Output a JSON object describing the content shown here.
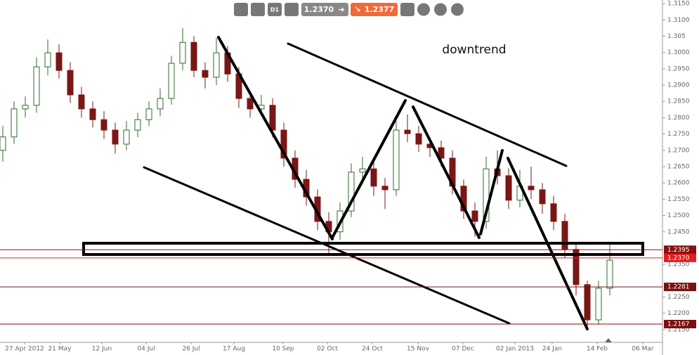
{
  "toolbar": {
    "timeframe": "D1",
    "bid": "1.2370",
    "ask": "1.2377"
  },
  "chart_data": {
    "type": "candlestick",
    "annotation": "downtrend",
    "up_color": "#2e6b2e",
    "down_color": "#7a1616",
    "xlim": [
      0,
      235.75
    ],
    "xticks": [
      {
        "value": 8.75,
        "label": "27 Apr 2012"
      },
      {
        "value": 21.25,
        "label": "21 May"
      },
      {
        "value": 36.25,
        "label": "12 Jun"
      },
      {
        "value": 52,
        "label": "04 Jul"
      },
      {
        "value": 68,
        "label": "26 Jul"
      },
      {
        "value": 83.25,
        "label": "17 Aug"
      },
      {
        "value": 100.75,
        "label": "10 Sep"
      },
      {
        "value": 116.5,
        "label": "02 Oct"
      },
      {
        "value": 132.5,
        "label": "24 Oct"
      },
      {
        "value": 148.75,
        "label": "15 Nov"
      },
      {
        "value": 164.75,
        "label": "07 Dec"
      },
      {
        "value": 183.25,
        "label": "02 Jan 2013"
      },
      {
        "value": 196.5,
        "label": "24 Jan"
      },
      {
        "value": 212.5,
        "label": "14 Feb"
      },
      {
        "value": 228.75,
        "label": "06 Mar"
      }
    ],
    "ylim": [
      1.2111,
      1.3161
    ],
    "yticks": [
      {
        "value": 1.315,
        "label": "1.3150"
      },
      {
        "value": 1.31,
        "label": "1.3100"
      },
      1.305,
      {
        "value": 1.3,
        "label": "1.3000"
      },
      {
        "value": 1.295,
        "label": "1.2950"
      },
      {
        "value": 1.29,
        "label": "1.2900"
      },
      {
        "value": 1.285,
        "label": "1.2850"
      },
      {
        "value": 1.28,
        "label": "1.2800"
      },
      {
        "value": 1.275,
        "label": "1.2750"
      },
      {
        "value": 1.27,
        "label": "1.2700"
      },
      {
        "value": 1.265,
        "label": "1.2650"
      },
      {
        "value": 1.26,
        "label": "1.2600"
      },
      {
        "value": 1.255,
        "label": "1.2550"
      },
      {
        "value": 1.25,
        "label": "1.2500"
      },
      {
        "value": 1.245,
        "label": "1.2450"
      },
      {
        "value": 1.235,
        "label": "1.2350"
      },
      {
        "value": 1.225,
        "label": "1.2250"
      },
      {
        "value": 1.22,
        "label": "1.2200"
      },
      {
        "value": 1.215,
        "label": "1.2150"
      }
    ],
    "price_lines": [
      {
        "value": 1.2395,
        "color": "#8b1010"
      },
      {
        "value": 1.237,
        "label": "1.2370",
        "color": "#e02020"
      },
      {
        "value": 1.2281,
        "color": "#7a1010"
      },
      {
        "value": 1.2167,
        "color": "#7a1010"
      }
    ],
    "x": [
      1,
      5,
      9,
      13,
      17,
      21,
      25,
      29,
      33,
      37,
      41,
      45,
      49,
      53,
      57,
      61,
      65,
      69,
      73,
      77,
      81,
      85,
      89,
      93,
      97,
      101,
      105,
      109,
      113,
      117,
      121,
      125,
      129,
      133,
      137,
      141,
      145,
      149,
      153,
      157,
      161,
      165,
      169,
      173,
      177,
      181,
      185,
      189,
      193,
      197,
      201,
      205,
      209,
      213,
      217
    ],
    "open": [
      1.27,
      1.2741,
      1.2827,
      1.2838,
      1.2956,
      1.2999,
      1.2945,
      1.287,
      1.2827,
      1.2794,
      1.2762,
      1.2719,
      1.2762,
      1.2794,
      1.2827,
      1.2859,
      1.2967,
      1.3031,
      1.2945,
      1.2924,
      1.2999,
      1.2934,
      1.2859,
      1.2827,
      1.2838,
      1.2762,
      1.2676,
      1.2611,
      1.2557,
      1.2482,
      1.245,
      1.2514,
      1.2633,
      1.2643,
      1.259,
      1.2579,
      1.2762,
      1.2751,
      1.2719,
      1.2708,
      1.2676,
      1.259,
      1.2514,
      1.2482,
      1.2643,
      1.2622,
      1.2547,
      1.259,
      1.2579,
      1.2536,
      1.2482,
      1.2396,
      1.2288,
      1.218,
      1.2277
    ],
    "high": [
      1.2775,
      1.285,
      1.2865,
      1.2985,
      1.304,
      1.3025,
      1.297,
      1.2895,
      1.285,
      1.282,
      1.2785,
      1.279,
      1.2815,
      1.285,
      1.289,
      1.299,
      1.3075,
      1.305,
      1.297,
      1.3045,
      1.302,
      1.2955,
      1.288,
      1.287,
      1.286,
      1.2785,
      1.27,
      1.264,
      1.258,
      1.251,
      1.254,
      1.266,
      1.268,
      1.2665,
      1.2615,
      1.279,
      1.281,
      1.2775,
      1.274,
      1.273,
      1.27,
      1.261,
      1.254,
      1.268,
      1.27,
      1.2645,
      1.264,
      1.265,
      1.26,
      1.256,
      1.2505,
      1.2415,
      1.23,
      1.23,
      1.242
    ],
    "low": [
      1.2665,
      1.272,
      1.28,
      1.2815,
      1.293,
      1.292,
      1.2845,
      1.28,
      1.277,
      1.2735,
      1.269,
      1.27,
      1.274,
      1.2775,
      1.2805,
      1.284,
      1.2945,
      1.2925,
      1.289,
      1.29,
      1.291,
      1.283,
      1.28,
      1.2805,
      1.274,
      1.265,
      1.2585,
      1.253,
      1.2455,
      1.2385,
      1.2425,
      1.2495,
      1.261,
      1.256,
      1.252,
      1.256,
      1.2725,
      1.2695,
      1.268,
      1.265,
      1.2565,
      1.249,
      1.2435,
      1.246,
      1.2595,
      1.252,
      1.2525,
      1.255,
      1.2505,
      1.2455,
      1.237,
      1.2255,
      1.215,
      1.2165,
      1.2255
    ],
    "close": [
      1.2741,
      1.2827,
      1.2838,
      1.2956,
      1.2999,
      1.2945,
      1.287,
      1.2827,
      1.2794,
      1.2762,
      1.2719,
      1.2762,
      1.2794,
      1.2827,
      1.2859,
      1.2967,
      1.3031,
      1.2945,
      1.2924,
      1.2999,
      1.2934,
      1.2859,
      1.2827,
      1.2838,
      1.2762,
      1.2676,
      1.2611,
      1.2557,
      1.2482,
      1.245,
      1.2514,
      1.2633,
      1.2643,
      1.259,
      1.2579,
      1.2762,
      1.2751,
      1.2719,
      1.2708,
      1.2676,
      1.259,
      1.2514,
      1.2482,
      1.2643,
      1.2622,
      1.2547,
      1.259,
      1.2579,
      1.2536,
      1.2482,
      1.2396,
      1.2288,
      1.218,
      1.2277,
      1.2363
    ]
  }
}
